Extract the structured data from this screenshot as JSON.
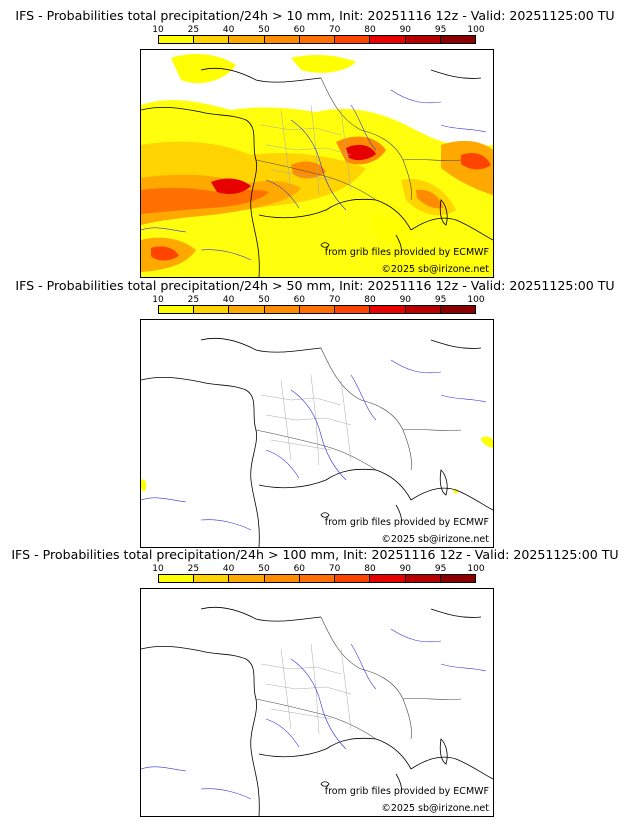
{
  "panels": [
    {
      "title": "IFS - Probabilities total precipitation/24h > 10 mm, Init: 20251116 12z - Valid: 20251125:00 TU",
      "intensity": "high"
    },
    {
      "title": "IFS - Probabilities total precipitation/24h > 50 mm, Init: 20251116 12z - Valid: 20251125:00 TU",
      "intensity": "low"
    },
    {
      "title": "IFS - Probabilities total precipitation/24h > 100 mm, Init: 20251116 12z - Valid: 20251125:00 TU",
      "intensity": "none"
    }
  ],
  "colorbar": {
    "labels": [
      "10",
      "25",
      "40",
      "50",
      "60",
      "70",
      "80",
      "90",
      "95",
      "100"
    ],
    "colors": [
      "#ffff00",
      "#ffd400",
      "#ffa800",
      "#ff8c00",
      "#ff7000",
      "#ff4400",
      "#e60000",
      "#b80000",
      "#8a0000",
      "#560000"
    ]
  },
  "credits": {
    "grib": "from grib files provided by ECMWF",
    "copyright": "©2025 sb@irizone.net"
  }
}
